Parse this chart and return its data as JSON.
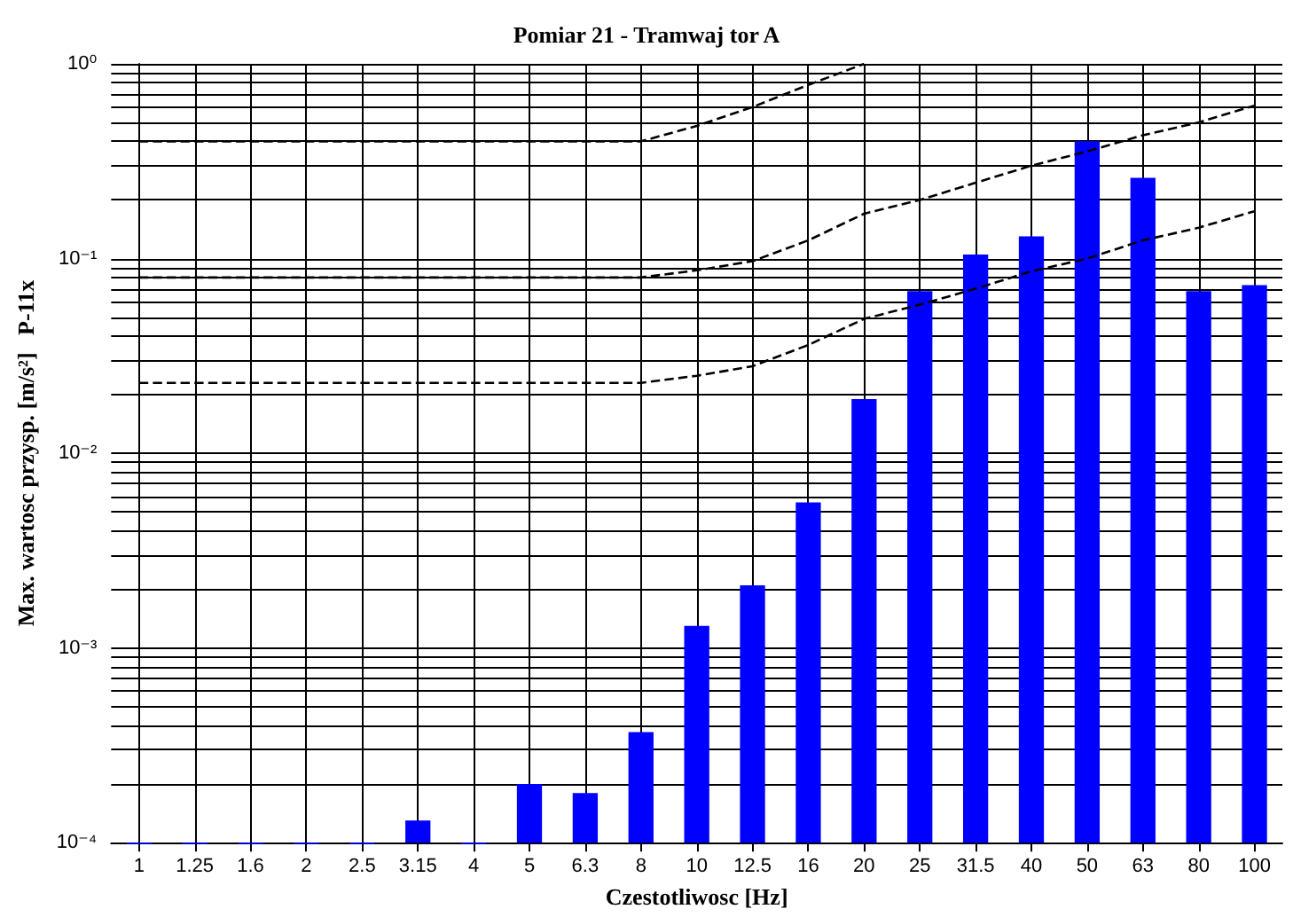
{
  "chart_data": {
    "type": "bar",
    "title": "Pomiar 21 - Tramwaj tor A",
    "xlabel": "Czestotliwosc [Hz]",
    "ylabel": "Max. wartosc przysp. [m/s²]   P-11x",
    "categories": [
      "1",
      "1.25",
      "1.6",
      "2",
      "2.5",
      "3.15",
      "4",
      "5",
      "6.3",
      "8",
      "10",
      "12.5",
      "16",
      "20",
      "25",
      "31.5",
      "40",
      "50",
      "63",
      "80",
      "100"
    ],
    "series": [
      {
        "color": "#0000ff",
        "values": [
          0.0001,
          0.0001,
          0.0001,
          0.0001,
          0.0001,
          0.00013,
          0.0001,
          0.0002,
          0.00018,
          0.00037,
          0.0013,
          0.0021,
          0.0056,
          0.019,
          0.068,
          0.105,
          0.13,
          0.4,
          0.26,
          0.068,
          0.073
        ]
      },
      {
        "type": "line",
        "color": "#000000",
        "line_style": "dashed",
        "marker": "none",
        "values": [
          0.4,
          0.4,
          0.4,
          0.4,
          0.4,
          0.4,
          0.4,
          0.4,
          0.4,
          0.4,
          0.48,
          0.6,
          0.78,
          1.0,
          null,
          null,
          null,
          null,
          null,
          null,
          null
        ]
      },
      {
        "type": "line",
        "color": "#000000",
        "line_style": "dashed",
        "marker": "none",
        "values": [
          0.08,
          0.08,
          0.08,
          0.08,
          0.08,
          0.08,
          0.08,
          0.08,
          0.08,
          0.08,
          0.087,
          0.097,
          0.124,
          0.17,
          0.2,
          0.245,
          0.3,
          0.355,
          0.43,
          0.5,
          0.61
        ]
      },
      {
        "type": "line",
        "color": "#000000",
        "line_style": "dashed",
        "marker": "none",
        "values": [
          0.023,
          0.023,
          0.023,
          0.023,
          0.023,
          0.023,
          0.023,
          0.023,
          0.023,
          0.023,
          0.025,
          0.028,
          0.036,
          0.049,
          0.058,
          0.07,
          0.086,
          0.1,
          0.124,
          0.144,
          0.175
        ]
      }
    ],
    "log": "y",
    "ylim": [
      0.0001,
      1
    ],
    "yticks": [
      {
        "value": 0.0001,
        "label": "10⁻⁴"
      },
      {
        "value": 0.001,
        "label": "10⁻³"
      },
      {
        "value": 0.01,
        "label": "10⁻²"
      },
      {
        "value": 0.1,
        "label": "10⁻¹"
      },
      {
        "value": 1,
        "label": "10⁰"
      }
    ],
    "grid": true
  }
}
